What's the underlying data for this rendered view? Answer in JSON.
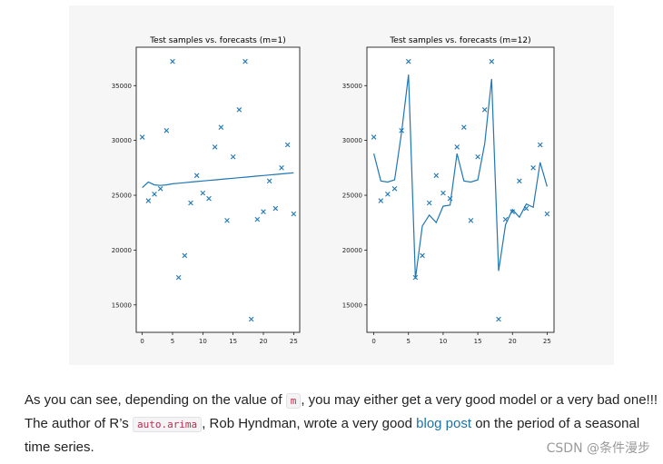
{
  "chart_data": [
    {
      "type": "line",
      "title": "Test samples vs. forecasts (m=1)",
      "xticks": [
        0,
        5,
        10,
        15,
        20,
        25
      ],
      "yticks": [
        15000,
        20000,
        25000,
        30000,
        35000
      ],
      "xlim": [
        -1,
        26
      ],
      "ylim": [
        12500,
        38500
      ],
      "series": [
        {
          "marker": "x",
          "x": [
            0,
            1,
            2,
            3,
            4,
            5,
            6,
            7,
            8,
            9,
            10,
            11,
            12,
            13,
            14,
            15,
            16,
            17,
            18,
            19,
            20,
            21,
            22,
            23,
            24,
            25
          ],
          "values": [
            30300,
            24500,
            25100,
            25600,
            30900,
            37200,
            17500,
            19500,
            24300,
            26800,
            25200,
            24700,
            29400,
            31200,
            22700,
            28500,
            32800,
            37200,
            13700,
            22800,
            23500,
            26300,
            23800,
            27500,
            29600,
            23300
          ]
        },
        {
          "line": true,
          "x": [
            0,
            1,
            2,
            3,
            4,
            5,
            6,
            7,
            8,
            9,
            10,
            11,
            12,
            13,
            14,
            15,
            16,
            17,
            18,
            19,
            20,
            21,
            22,
            23,
            24,
            25
          ],
          "values": [
            25700,
            26200,
            25950,
            25900,
            25950,
            26050,
            26100,
            26150,
            26200,
            26250,
            26300,
            26350,
            26400,
            26450,
            26500,
            26550,
            26600,
            26650,
            26700,
            26750,
            26800,
            26850,
            26900,
            26950,
            27000,
            27050
          ]
        }
      ]
    },
    {
      "type": "line",
      "title": "Test samples vs. forecasts (m=12)",
      "xticks": [
        0,
        5,
        10,
        15,
        20,
        25
      ],
      "yticks": [
        15000,
        20000,
        25000,
        30000,
        35000
      ],
      "xlim": [
        -1,
        26
      ],
      "ylim": [
        12500,
        38500
      ],
      "series": [
        {
          "marker": "x",
          "x": [
            0,
            1,
            2,
            3,
            4,
            5,
            6,
            7,
            8,
            9,
            10,
            11,
            12,
            13,
            14,
            15,
            16,
            17,
            18,
            19,
            20,
            21,
            22,
            23,
            24,
            25
          ],
          "values": [
            30300,
            24500,
            25100,
            25600,
            30900,
            37200,
            17500,
            19500,
            24300,
            26800,
            25200,
            24700,
            29400,
            31200,
            22700,
            28500,
            32800,
            37200,
            13700,
            22800,
            23500,
            26300,
            23800,
            27500,
            29600,
            23300
          ]
        },
        {
          "line": true,
          "x": [
            0,
            1,
            2,
            3,
            4,
            5,
            6,
            7,
            8,
            9,
            10,
            11,
            12,
            13,
            14,
            15,
            16,
            17,
            18,
            19,
            20,
            21,
            22,
            23,
            24,
            25
          ],
          "values": [
            28800,
            26300,
            26200,
            26400,
            30700,
            36000,
            17400,
            22200,
            23200,
            22500,
            24000,
            24100,
            28800,
            26300,
            26200,
            26400,
            29700,
            35600,
            18100,
            22300,
            23700,
            23000,
            24200,
            23900,
            28000,
            25800
          ]
        }
      ]
    }
  ],
  "colors": {
    "series": "#1f77b4",
    "figure_background": "#f6f6f6",
    "link": "#1a73a8",
    "code": "#c7254e"
  },
  "text": {
    "p1": "As you can see, depending on the value of ",
    "code1": "m",
    "p2": ", you may either get a very good model or a very bad one!!! The author of R’s ",
    "code2": "auto.arima",
    "p3": ", Rob Hyndman, wrote a very good ",
    "link": "blog post",
    "p4": " on the period of a seasonal time series."
  },
  "watermark": "CSDN @条件漫步"
}
